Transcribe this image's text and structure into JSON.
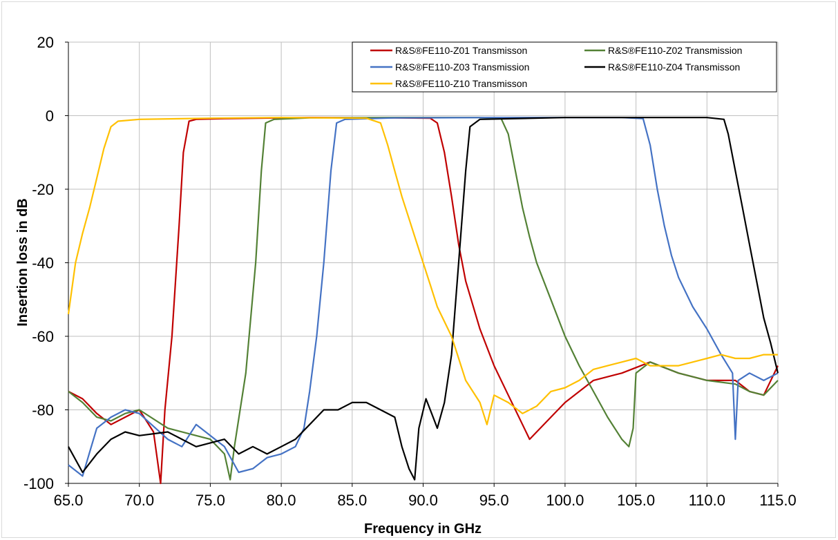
{
  "chart_data": {
    "type": "line",
    "title": "",
    "xlabel": "Frequency in GHz",
    "ylabel": "Insertion loss in dB",
    "xlim": [
      65,
      115
    ],
    "ylim": [
      -100,
      20
    ],
    "x_ticks": [
      "65.0",
      "70.0",
      "75.0",
      "80.0",
      "85.0",
      "90.0",
      "95.0",
      "100.0",
      "105.0",
      "110.0",
      "115.0"
    ],
    "y_ticks": [
      "20",
      "0",
      "-20",
      "-40",
      "-60",
      "-80",
      "-100"
    ],
    "grid": true,
    "legend_position": "top-right",
    "series": [
      {
        "name": "R&S®FE110-Z01 Transmisson",
        "color": "#c00000",
        "points": [
          [
            65,
            -75
          ],
          [
            66,
            -77
          ],
          [
            67,
            -81
          ],
          [
            68,
            -84
          ],
          [
            69,
            -82
          ],
          [
            70,
            -80
          ],
          [
            71,
            -86
          ],
          [
            71.5,
            -100
          ],
          [
            71.8,
            -80
          ],
          [
            72.3,
            -60
          ],
          [
            72.8,
            -30
          ],
          [
            73.1,
            -10
          ],
          [
            73.5,
            -1.5
          ],
          [
            74,
            -1
          ],
          [
            76,
            -0.8
          ],
          [
            82,
            -0.5
          ],
          [
            88,
            -0.6
          ],
          [
            90.5,
            -0.7
          ],
          [
            91,
            -2
          ],
          [
            91.5,
            -10
          ],
          [
            92,
            -22
          ],
          [
            92.5,
            -35
          ],
          [
            93,
            -45
          ],
          [
            94,
            -58
          ],
          [
            95,
            -68
          ],
          [
            96,
            -76
          ],
          [
            97.5,
            -88
          ],
          [
            99,
            -82
          ],
          [
            100,
            -78
          ],
          [
            102,
            -72
          ],
          [
            104,
            -70
          ],
          [
            106,
            -67
          ],
          [
            108,
            -70
          ],
          [
            110,
            -72
          ],
          [
            112,
            -72
          ],
          [
            113,
            -75
          ],
          [
            114,
            -76
          ],
          [
            115,
            -68
          ]
        ]
      },
      {
        "name": "R&S®FE110-Z02 Transmission",
        "color": "#538135",
        "points": [
          [
            65,
            -75
          ],
          [
            66,
            -78
          ],
          [
            67,
            -82
          ],
          [
            68,
            -83
          ],
          [
            69,
            -81
          ],
          [
            70,
            -80
          ],
          [
            72,
            -85
          ],
          [
            74,
            -87
          ],
          [
            75,
            -88
          ],
          [
            76,
            -92
          ],
          [
            76.4,
            -99
          ],
          [
            76.7,
            -90
          ],
          [
            77.5,
            -70
          ],
          [
            78.2,
            -40
          ],
          [
            78.6,
            -15
          ],
          [
            78.9,
            -2
          ],
          [
            79.5,
            -1
          ],
          [
            82,
            -0.6
          ],
          [
            88,
            -0.5
          ],
          [
            94,
            -0.5
          ],
          [
            95.5,
            -0.8
          ],
          [
            96,
            -5
          ],
          [
            96.5,
            -15
          ],
          [
            97,
            -25
          ],
          [
            97.5,
            -33
          ],
          [
            98,
            -40
          ],
          [
            99,
            -50
          ],
          [
            100,
            -60
          ],
          [
            101,
            -68
          ],
          [
            102,
            -75
          ],
          [
            103,
            -82
          ],
          [
            104,
            -88
          ],
          [
            104.5,
            -90
          ],
          [
            104.8,
            -85
          ],
          [
            105,
            -70
          ],
          [
            106,
            -67
          ],
          [
            108,
            -70
          ],
          [
            110,
            -72
          ],
          [
            112,
            -73
          ],
          [
            113,
            -75
          ],
          [
            114,
            -76
          ],
          [
            115,
            -72
          ]
        ]
      },
      {
        "name": "R&S®FE110-Z03 Transmission",
        "color": "#4472c4",
        "points": [
          [
            65,
            -95
          ],
          [
            66,
            -98
          ],
          [
            67,
            -85
          ],
          [
            68,
            -82
          ],
          [
            69,
            -80
          ],
          [
            70,
            -81
          ],
          [
            72,
            -88
          ],
          [
            73,
            -90
          ],
          [
            74,
            -84
          ],
          [
            75,
            -87
          ],
          [
            76,
            -90
          ],
          [
            77,
            -97
          ],
          [
            78,
            -96
          ],
          [
            79,
            -93
          ],
          [
            80,
            -92
          ],
          [
            81,
            -90
          ],
          [
            81.6,
            -85
          ],
          [
            82,
            -75
          ],
          [
            82.5,
            -60
          ],
          [
            83,
            -40
          ],
          [
            83.5,
            -15
          ],
          [
            83.9,
            -2
          ],
          [
            84.5,
            -1
          ],
          [
            88,
            -0.6
          ],
          [
            95,
            -0.5
          ],
          [
            104,
            -0.5
          ],
          [
            105.5,
            -0.8
          ],
          [
            106,
            -8
          ],
          [
            106.5,
            -20
          ],
          [
            107,
            -30
          ],
          [
            107.5,
            -38
          ],
          [
            108,
            -44
          ],
          [
            109,
            -52
          ],
          [
            110,
            -58
          ],
          [
            111,
            -65
          ],
          [
            111.8,
            -70
          ],
          [
            112,
            -88
          ],
          [
            112.2,
            -72
          ],
          [
            113,
            -70
          ],
          [
            114,
            -72
          ],
          [
            115,
            -70
          ]
        ]
      },
      {
        "name": "R&S®FE110-Z04 Transmisson",
        "color": "#000000",
        "points": [
          [
            65,
            -90
          ],
          [
            66,
            -97
          ],
          [
            67,
            -92
          ],
          [
            68,
            -88
          ],
          [
            69,
            -86
          ],
          [
            70,
            -87
          ],
          [
            72,
            -86
          ],
          [
            73,
            -88
          ],
          [
            74,
            -90
          ],
          [
            75,
            -89
          ],
          [
            76,
            -88
          ],
          [
            77,
            -92
          ],
          [
            78,
            -90
          ],
          [
            79,
            -92
          ],
          [
            80,
            -90
          ],
          [
            81,
            -88
          ],
          [
            82,
            -84
          ],
          [
            83,
            -80
          ],
          [
            84,
            -80
          ],
          [
            85,
            -78
          ],
          [
            86,
            -78
          ],
          [
            87,
            -80
          ],
          [
            88,
            -82
          ],
          [
            88.5,
            -90
          ],
          [
            89,
            -96
          ],
          [
            89.4,
            -99
          ],
          [
            89.7,
            -85
          ],
          [
            90.2,
            -77
          ],
          [
            90.7,
            -82
          ],
          [
            91,
            -85
          ],
          [
            91.5,
            -78
          ],
          [
            92,
            -65
          ],
          [
            92.5,
            -40
          ],
          [
            93,
            -15
          ],
          [
            93.3,
            -3
          ],
          [
            94,
            -1
          ],
          [
            100,
            -0.5
          ],
          [
            110,
            -0.5
          ],
          [
            111.2,
            -1
          ],
          [
            111.5,
            -5
          ],
          [
            112,
            -15
          ],
          [
            112.5,
            -25
          ],
          [
            113,
            -35
          ],
          [
            113.5,
            -45
          ],
          [
            114,
            -55
          ],
          [
            114.5,
            -62
          ],
          [
            115,
            -70
          ]
        ]
      },
      {
        "name": "R&S®FE110-Z10 Transmisson",
        "color": "#ffc000",
        "points": [
          [
            65,
            -54
          ],
          [
            65.5,
            -40
          ],
          [
            66,
            -32
          ],
          [
            66.5,
            -25
          ],
          [
            67,
            -17
          ],
          [
            67.5,
            -9
          ],
          [
            68,
            -3
          ],
          [
            68.5,
            -1.5
          ],
          [
            70,
            -1
          ],
          [
            75,
            -0.7
          ],
          [
            80,
            -0.5
          ],
          [
            86,
            -0.7
          ],
          [
            87,
            -2
          ],
          [
            87.5,
            -8
          ],
          [
            88,
            -15
          ],
          [
            88.5,
            -22
          ],
          [
            89,
            -28
          ],
          [
            89.5,
            -34
          ],
          [
            90,
            -40
          ],
          [
            90.5,
            -46
          ],
          [
            91,
            -52
          ],
          [
            92,
            -60
          ],
          [
            92.5,
            -66
          ],
          [
            93,
            -72
          ],
          [
            93.5,
            -75
          ],
          [
            94,
            -78
          ],
          [
            94.5,
            -84
          ],
          [
            95,
            -76
          ],
          [
            96,
            -78
          ],
          [
            97,
            -81
          ],
          [
            98,
            -79
          ],
          [
            99,
            -75
          ],
          [
            100,
            -74
          ],
          [
            101,
            -72
          ],
          [
            102,
            -69
          ],
          [
            103,
            -68
          ],
          [
            104,
            -67
          ],
          [
            105,
            -66
          ],
          [
            106,
            -68
          ],
          [
            107,
            -68
          ],
          [
            108,
            -68
          ],
          [
            109,
            -67
          ],
          [
            110,
            -66
          ],
          [
            111,
            -65
          ],
          [
            112,
            -66
          ],
          [
            113,
            -66
          ],
          [
            114,
            -65
          ],
          [
            115,
            -65
          ]
        ]
      }
    ]
  }
}
